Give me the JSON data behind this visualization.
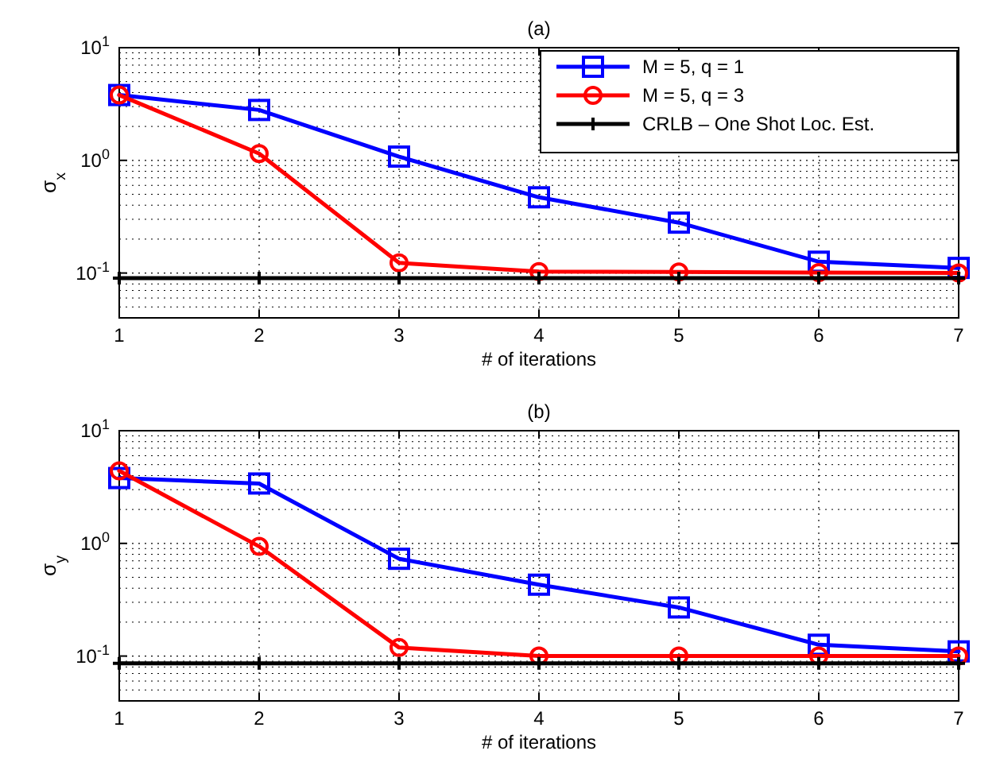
{
  "chart_data": [
    {
      "type": "line",
      "title": "(a)",
      "xlabel": "# of iterations",
      "ylabel": "σ$_{x}$",
      "x": [
        1,
        2,
        3,
        4,
        5,
        6,
        7
      ],
      "xlim": [
        1,
        7
      ],
      "xticks": [
        1,
        2,
        3,
        4,
        5,
        6,
        7
      ],
      "ylim": [
        0.04,
        10
      ],
      "yticks": [
        {
          "value": 0.1,
          "label": "10$^{-1}$"
        },
        {
          "value": 1,
          "label": "10$^{0}$"
        },
        {
          "value": 10,
          "label": "10$^{1}$"
        }
      ],
      "log": "y",
      "grid": true,
      "legend": "top right",
      "series": [
        {
          "name": "M = 5, q = 1",
          "color": "#0000ff",
          "marker": "square",
          "values": [
            3.8,
            2.8,
            1.08,
            0.47,
            0.28,
            0.126,
            0.111
          ]
        },
        {
          "name": "M = 5, q = 3",
          "color": "#ff0000",
          "marker": "circle",
          "values": [
            3.8,
            1.15,
            0.123,
            0.103,
            0.102,
            0.101,
            0.1
          ]
        },
        {
          "name": "CRLB – One Shot Loc. Est.",
          "color": "#000000",
          "marker": "cross",
          "values": [
            0.09,
            0.09,
            0.09,
            0.09,
            0.09,
            0.09,
            0.09
          ]
        }
      ]
    },
    {
      "type": "line",
      "title": "(b)",
      "xlabel": "# of iterations",
      "ylabel": "σ$_{y}$",
      "x": [
        1,
        2,
        3,
        4,
        5,
        6,
        7
      ],
      "xlim": [
        1,
        7
      ],
      "xticks": [
        1,
        2,
        3,
        4,
        5,
        6,
        7
      ],
      "ylim": [
        0.04,
        10
      ],
      "yticks": [
        {
          "value": 0.1,
          "label": "10$^{-1}$"
        },
        {
          "value": 1,
          "label": "10$^{0}$"
        },
        {
          "value": 10,
          "label": "10$^{1}$"
        }
      ],
      "log": "y",
      "grid": true,
      "series": [
        {
          "color": "#0000ff",
          "marker": "square",
          "values": [
            3.8,
            3.4,
            0.73,
            0.43,
            0.27,
            0.126,
            0.11
          ]
        },
        {
          "color": "#ff0000",
          "marker": "circle",
          "values": [
            4.4,
            0.94,
            0.119,
            0.1,
            0.1,
            0.1,
            0.1
          ]
        },
        {
          "color": "#000000",
          "marker": "cross",
          "values": [
            0.086,
            0.086,
            0.086,
            0.086,
            0.086,
            0.086,
            0.086
          ]
        }
      ]
    }
  ]
}
